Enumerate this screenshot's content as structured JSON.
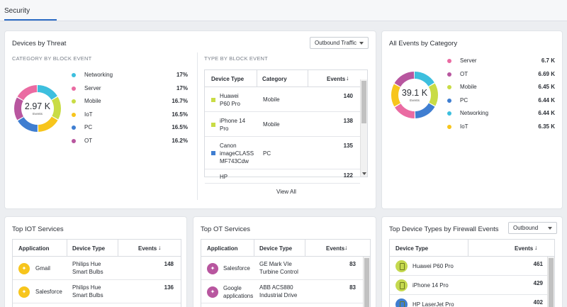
{
  "header": {
    "tab_label": "Security"
  },
  "devices_by_threat": {
    "title": "Devices by Threat",
    "dropdown_value": "Outbound Traffic",
    "category_subtitle": "CATEGORY BY BLOCK EVENT",
    "type_subtitle": "TYPE BY BLOCK EVENT",
    "donut_value": "2.97 K",
    "donut_label": "Events",
    "legend": [
      {
        "label": "Networking",
        "value": "17%",
        "color": "#3dbfde"
      },
      {
        "label": "Server",
        "value": "17%",
        "color": "#ea6ba2"
      },
      {
        "label": "Mobile",
        "value": "16.7%",
        "color": "#c9dc45"
      },
      {
        "label": "IoT",
        "value": "16.5%",
        "color": "#f7c51c"
      },
      {
        "label": "PC",
        "value": "16.5%",
        "color": "#3f7ed1"
      },
      {
        "label": "OT",
        "value": "16.2%",
        "color": "#b8569f"
      }
    ],
    "table": {
      "headers": {
        "device_type": "Device Type",
        "category": "Category",
        "events": "Events"
      },
      "rows": [
        {
          "device_type": [
            "Huawei",
            "P60 Pro"
          ],
          "category": "Mobile",
          "events": "140",
          "color": "#c9dc45"
        },
        {
          "device_type": [
            "iPhone 14",
            "Pro"
          ],
          "category": "Mobile",
          "events": "138",
          "color": "#c9dc45"
        },
        {
          "device_type": [
            "Canon",
            "imageCLASS",
            "MF743Cdw"
          ],
          "category": "PC",
          "events": "135",
          "color": "#3f7ed1"
        },
        {
          "device_type": [
            "HP"
          ],
          "category": "",
          "events": "122",
          "color": ""
        }
      ]
    },
    "view_all": "View All"
  },
  "all_events": {
    "title": "All Events by Category",
    "donut_value": "39.1 K",
    "donut_label": "Events",
    "legend": [
      {
        "label": "Server",
        "value": "6.7 K",
        "color": "#ea6ba2"
      },
      {
        "label": "OT",
        "value": "6.69 K",
        "color": "#b8569f"
      },
      {
        "label": "Mobile",
        "value": "6.45 K",
        "color": "#c9dc45"
      },
      {
        "label": "PC",
        "value": "6.44 K",
        "color": "#3f7ed1"
      },
      {
        "label": "Networking",
        "value": "6.44 K",
        "color": "#3dbfde"
      },
      {
        "label": "IoT",
        "value": "6.35 K",
        "color": "#f7c51c"
      }
    ]
  },
  "top_iot": {
    "title": "Top IOT Services",
    "headers": {
      "application": "Application",
      "device_type": "Device Type",
      "events": "Events"
    },
    "rows": [
      {
        "application": "Gmail",
        "device_type": [
          "Philips Hue",
          "Smart Bulbs"
        ],
        "events": "148",
        "icon_color": "#f7c51c"
      },
      {
        "application": "Salesforce",
        "device_type": [
          "Philips Hue",
          "Smart Bulbs"
        ],
        "events": "136",
        "icon_color": "#f7c51c"
      }
    ]
  },
  "top_ot": {
    "title": "Top OT Services",
    "headers": {
      "application": "Application",
      "device_type": "Device Type",
      "events": "Events"
    },
    "rows": [
      {
        "application": [
          "Salesforce"
        ],
        "device_type": [
          "GE Mark VIe",
          "Turbine Control"
        ],
        "events": "83",
        "icon_color": "#b8569f"
      },
      {
        "application": [
          "Google",
          "applications"
        ],
        "device_type": [
          "ABB ACS880",
          "Industrial Drive"
        ],
        "events": "83",
        "icon_color": "#b8569f"
      }
    ]
  },
  "top_device_types": {
    "title": "Top Device Types by Firewall Events",
    "dropdown_value": "Outbound",
    "headers": {
      "device_type": "Device Type",
      "events": "Events"
    },
    "rows": [
      {
        "device_type": "Huawei P60 Pro",
        "events": "461"
      },
      {
        "device_type": "iPhone 14 Pro",
        "events": "429"
      },
      {
        "device_type": "HP LaserJet Pro",
        "events": "402"
      }
    ]
  }
}
